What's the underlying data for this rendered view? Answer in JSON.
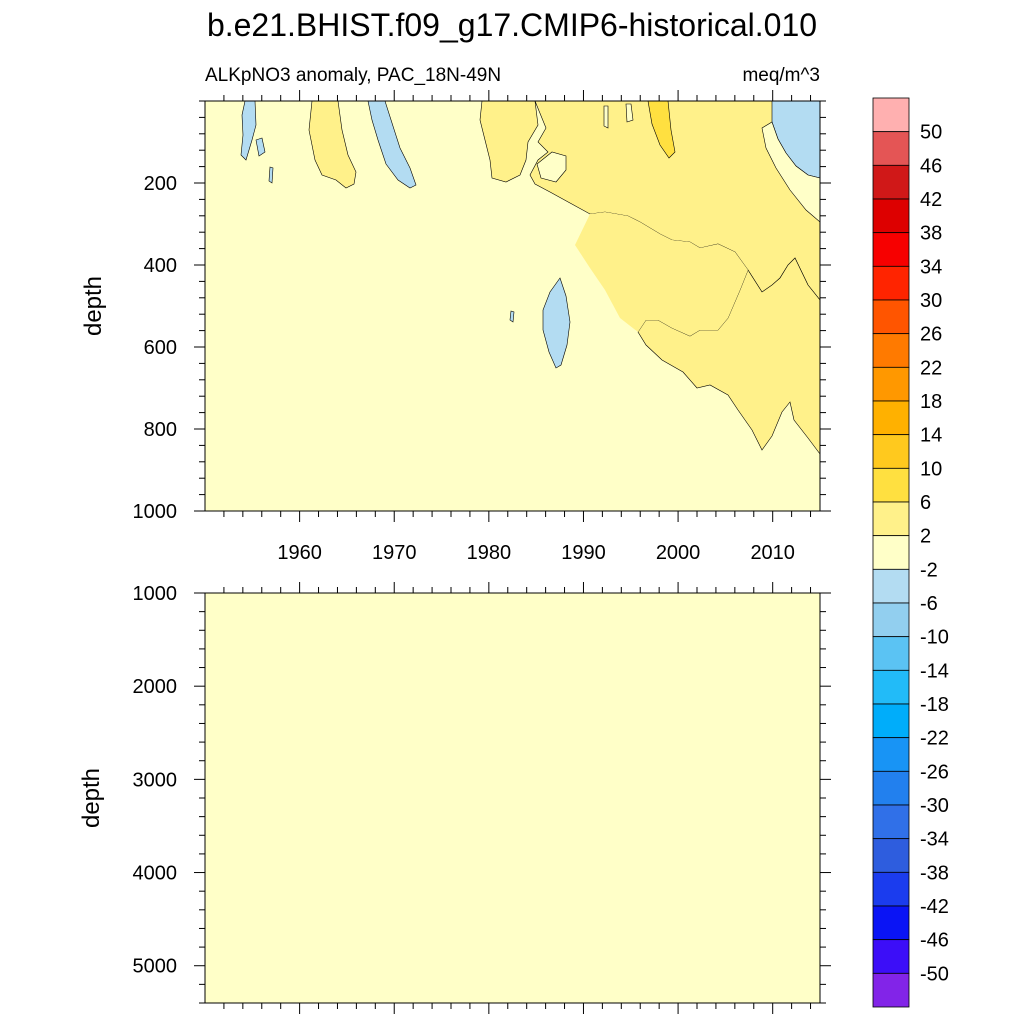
{
  "chart_data": {
    "type": "heatmap",
    "title": "b.e21.BHIST.f09_g17.CMIP6-historical.010",
    "subtitle_left": "ALKpNO3 anomaly, PAC_18N-49N",
    "subtitle_right": "meq/m^3",
    "x_axis": {
      "range": [
        1950,
        2015
      ],
      "ticks": [
        1960,
        1970,
        1980,
        1990,
        2000,
        2010
      ],
      "tick_labels": [
        "1960",
        "1970",
        "1980",
        "1990",
        "2000",
        "2010"
      ]
    },
    "panels": [
      {
        "id": "upper",
        "ylabel": "depth",
        "ylim": [
          0,
          1000
        ],
        "y_inverted": true,
        "yticks": [
          200,
          400,
          600,
          800,
          1000
        ],
        "ytick_labels": [
          "200",
          "400",
          "600",
          "800",
          "1000"
        ],
        "background_level": "-2 to 2",
        "features": [
          {
            "level": "-6 to -2",
            "x": [
              1954,
              1956
            ],
            "depth": [
              0,
              190
            ]
          },
          {
            "level": "2 to 6",
            "x": [
              1961,
              1965
            ],
            "depth": [
              0,
              210
            ]
          },
          {
            "level": "-6 to -2",
            "x": [
              1967,
              1972
            ],
            "depth": [
              0,
              210
            ]
          },
          {
            "level": "2 to 6",
            "x": [
              1980,
              1986
            ],
            "depth": [
              0,
              190
            ]
          },
          {
            "level": "-6 to -2",
            "x": [
              1986,
              1988
            ],
            "depth": [
              430,
              650
            ]
          },
          {
            "level": "2 to 6",
            "x": [
              1985,
              2015
            ],
            "depth": [
              0,
              470
            ]
          },
          {
            "level": "6 to 10",
            "x": [
              1997,
              1999
            ],
            "depth": [
              0,
              130
            ]
          },
          {
            "level": "-6 to -2",
            "x": [
              2010,
              2015
            ],
            "depth": [
              0,
              180
            ]
          }
        ]
      },
      {
        "id": "lower",
        "ylabel": "depth",
        "ylim": [
          1000,
          5400
        ],
        "y_inverted": true,
        "yticks": [
          1000,
          2000,
          3000,
          4000,
          5000
        ],
        "ytick_labels": [
          "1000",
          "2000",
          "3000",
          "4000",
          "5000"
        ],
        "background_level": "-2 to 2",
        "features": []
      }
    ],
    "colorbar": {
      "labels": [
        "50",
        "46",
        "42",
        "38",
        "34",
        "30",
        "26",
        "22",
        "18",
        "14",
        "10",
        "6",
        "2",
        "-2",
        "-6",
        "-10",
        "-14",
        "-18",
        "-22",
        "-26",
        "-30",
        "-34",
        "-38",
        "-42",
        "-46",
        "-50"
      ],
      "colors": [
        "#FFB0B0",
        "#E45555",
        "#D01818",
        "#DD0000",
        "#F70000",
        "#FF2400",
        "#FF5500",
        "#FF7A00",
        "#FF9800",
        "#FFB100",
        "#FFC91E",
        "#FFE040",
        "#FFF18A",
        "#FFFFC8",
        "#B3DCF2",
        "#92CFEF",
        "#5BC3F3",
        "#22BBF8",
        "#00ADFA",
        "#1894F5",
        "#2280EE",
        "#3070E8",
        "#2E5DDE",
        "#1B3CEE",
        "#0A14F5",
        "#3C0EF8",
        "#8224E8"
      ]
    }
  }
}
